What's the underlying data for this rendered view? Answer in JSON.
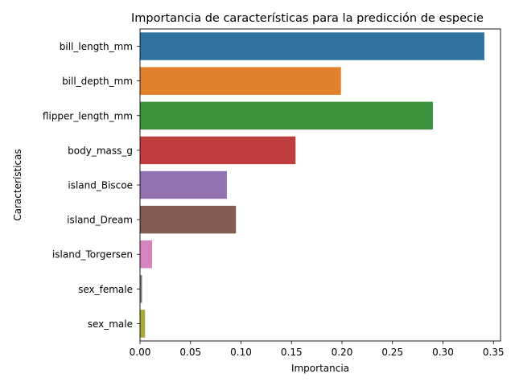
{
  "chart_data": {
    "type": "bar",
    "orientation": "horizontal",
    "title": "Importancia de características para la predicción de especie",
    "xlabel": "Importancia",
    "ylabel": "Características",
    "xlim": [
      0,
      0.357
    ],
    "xticks": [
      0.0,
      0.05,
      0.1,
      0.15,
      0.2,
      0.25,
      0.3,
      0.35
    ],
    "xtick_labels": [
      "0.00",
      "0.05",
      "0.10",
      "0.15",
      "0.20",
      "0.25",
      "0.30",
      "0.35"
    ],
    "grid": false,
    "legend": "none",
    "categories": [
      "bill_length_mm",
      "bill_depth_mm",
      "flipper_length_mm",
      "body_mass_g",
      "island_Biscoe",
      "island_Dream",
      "island_Torgersen",
      "sex_female",
      "sex_male"
    ],
    "values": [
      0.341,
      0.199,
      0.29,
      0.154,
      0.086,
      0.095,
      0.012,
      0.002,
      0.005
    ],
    "colors": [
      "#3274a1",
      "#e1812c",
      "#3a923a",
      "#c03d3e",
      "#9372b2",
      "#845b53",
      "#d684bd",
      "#7f7f7f",
      "#a9aa35"
    ]
  }
}
